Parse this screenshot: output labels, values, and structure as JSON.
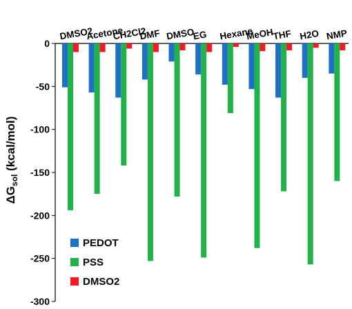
{
  "chart_data": {
    "type": "bar",
    "title": "",
    "categories": [
      "DMSO2",
      "Acetone",
      "CH2Cl2",
      "DMF",
      "DMSO",
      "EG",
      "Hexane",
      "MeOH",
      "THF",
      "H2O",
      "NMP"
    ],
    "series": [
      {
        "name": "PEDOT",
        "color": "#1f6fc4",
        "values": [
          -51,
          -57,
          -63,
          -42,
          -21,
          -36,
          -48,
          -53,
          -63,
          -40,
          -35
        ]
      },
      {
        "name": "PSS",
        "color": "#21b24b",
        "values": [
          -194,
          -175,
          -142,
          -253,
          -178,
          -249,
          -81,
          -238,
          -172,
          -257,
          -160
        ]
      },
      {
        "name": "DMSO2",
        "color": "#ee1c24",
        "values": [
          -10,
          -10,
          -6,
          -10,
          -8,
          -10,
          -4,
          -9,
          -8,
          -5,
          -8
        ]
      }
    ],
    "ylim": [
      -300,
      0
    ],
    "yticks": [
      0,
      -50,
      -100,
      -150,
      -200,
      -250,
      -300
    ],
    "ylabel_main": "ΔG",
    "ylabel_sub": "sol",
    "ylabel_unit": " (kcal/mol)",
    "legend_position": "bottom-left",
    "grid": false
  }
}
